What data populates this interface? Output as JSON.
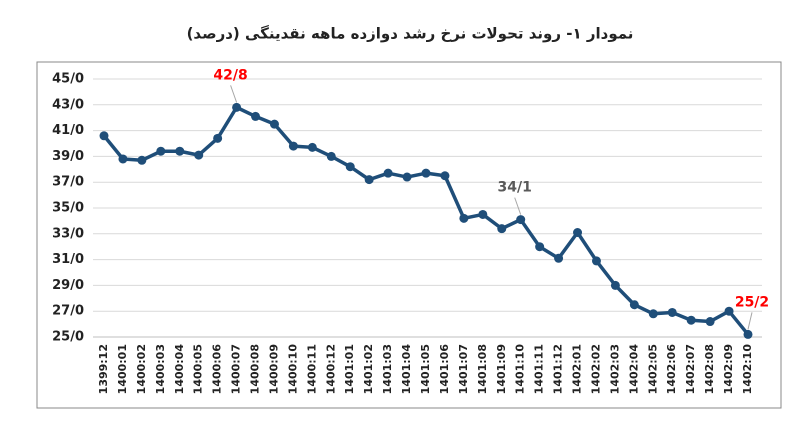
{
  "chart_data": {
    "type": "line",
    "title": "نمودار ۱- روند تحولات نرخ رشد دوازده ماهه نقدینگی (درصد)",
    "categories": [
      "1399:12",
      "1400:01",
      "1400:02",
      "1400:03",
      "1400:04",
      "1400:05",
      "1400:06",
      "1400:07",
      "1400:08",
      "1400:09",
      "1400:10",
      "1400:11",
      "1400:12",
      "1401:01",
      "1401:02",
      "1401:03",
      "1401:04",
      "1401:05",
      "1401:06",
      "1401:07",
      "1401:08",
      "1401:09",
      "1401:10",
      "1401:11",
      "1401:12",
      "1402:01",
      "1402:02",
      "1402:03",
      "1402:04",
      "1402:05",
      "1402:06",
      "1402:07",
      "1402:08",
      "1402:09",
      "1402:10"
    ],
    "series": [
      {
        "color": "#1f4e79",
        "values": [
          40.6,
          38.8,
          38.7,
          39.4,
          39.4,
          39.1,
          40.4,
          42.8,
          42.1,
          41.5,
          39.8,
          39.7,
          39.0,
          38.2,
          37.2,
          37.7,
          37.4,
          37.7,
          37.5,
          34.2,
          34.5,
          33.4,
          34.1,
          32.0,
          31.1,
          33.1,
          30.9,
          29.0,
          27.5,
          26.8,
          26.9,
          26.3,
          26.2,
          27.0,
          25.2
        ],
        "value_labels": [
          null,
          null,
          null,
          null,
          null,
          null,
          null,
          "42/8",
          null,
          null,
          null,
          null,
          null,
          null,
          null,
          null,
          null,
          null,
          null,
          null,
          null,
          null,
          "34/1",
          null,
          null,
          null,
          null,
          null,
          null,
          null,
          null,
          null,
          null,
          null,
          "25/2"
        ],
        "value_label_colors": [
          null,
          null,
          null,
          null,
          null,
          null,
          null,
          "#ff0000",
          null,
          null,
          null,
          null,
          null,
          null,
          null,
          null,
          null,
          null,
          null,
          null,
          null,
          null,
          "#595959",
          null,
          null,
          null,
          null,
          null,
          null,
          null,
          null,
          null,
          null,
          null,
          "#ff0000"
        ]
      }
    ],
    "ylim": [
      25,
      45
    ],
    "yticks": [
      {
        "value": 25,
        "label": "25/0"
      },
      {
        "value": 27,
        "label": "27/0"
      },
      {
        "value": 29,
        "label": "29/0"
      },
      {
        "value": 31,
        "label": "31/0"
      },
      {
        "value": 33,
        "label": "33/0"
      },
      {
        "value": 35,
        "label": "35/0"
      },
      {
        "value": 37,
        "label": "37/0"
      },
      {
        "value": 39,
        "label": "39/0"
      },
      {
        "value": 41,
        "label": "41/0"
      },
      {
        "value": 43,
        "label": "43/0"
      },
      {
        "value": 45,
        "label": "45/0"
      }
    ],
    "grid": true
  }
}
